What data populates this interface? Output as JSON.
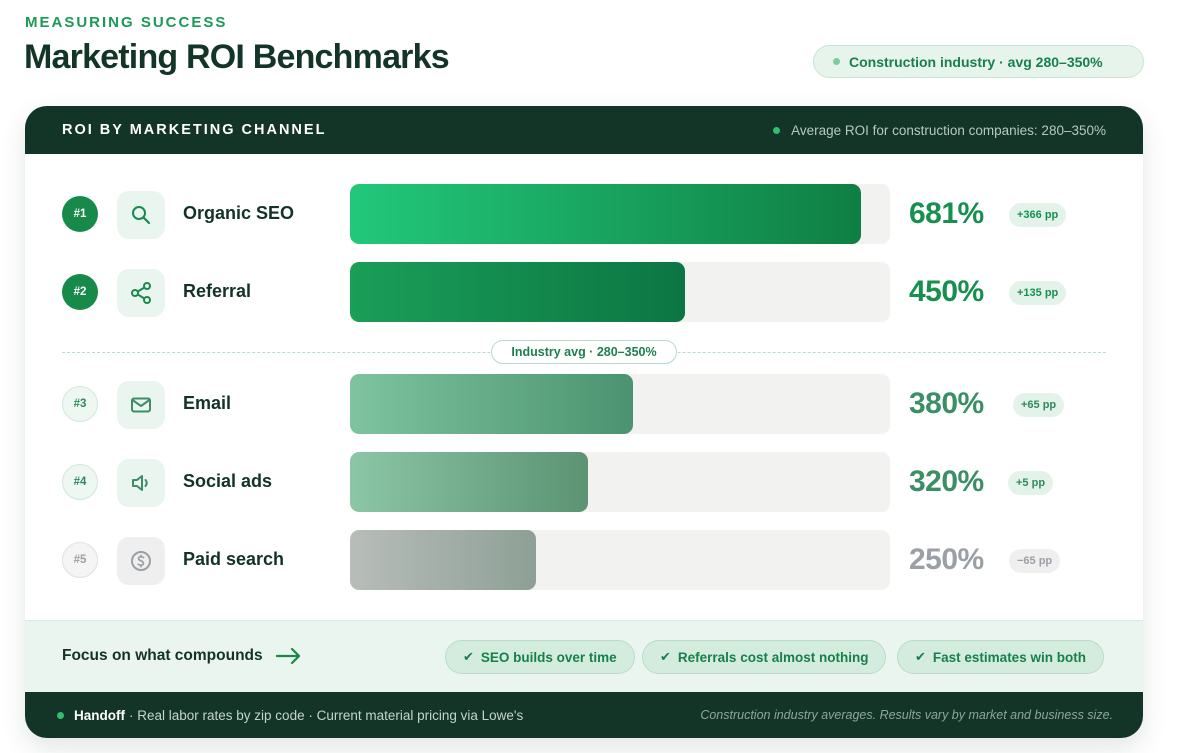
{
  "header": {
    "eyebrow": "MEASURING SUCCESS",
    "title": "Marketing ROI Benchmarks",
    "industry_pill": "Construction industry · avg 280–350%"
  },
  "card": {
    "title": "ROI BY MARKETING CHANNEL",
    "note": "Average ROI for construction companies: 280–350%",
    "divider_label": "Industry avg · 280–350%"
  },
  "colors": {
    "brand_dark": "#133528",
    "accent_green": "#1a9a57",
    "muted_gray": "#9aa0a6"
  },
  "chart_data": {
    "type": "bar",
    "orientation": "horizontal",
    "title": "ROI BY MARKETING CHANNEL",
    "categories": [
      "Organic SEO",
      "Referral",
      "Email",
      "Social ads",
      "Paid search"
    ],
    "values": [
      681,
      450,
      380,
      320,
      250
    ],
    "value_labels": [
      "681%",
      "450%",
      "380%",
      "320%",
      "250%"
    ],
    "ranks": [
      "#1",
      "#2",
      "#3",
      "#4",
      "#5"
    ],
    "deltas": [
      "+366 pp",
      "+135 pp",
      "+65 pp",
      "+5 pp",
      "−65 pp"
    ],
    "icons": [
      "search-icon",
      "share-icon",
      "mail-icon",
      "speaker-icon",
      "dollar-icon"
    ],
    "xlim": [
      0,
      700
    ],
    "reference_band": {
      "label": "Industry avg · 280–350%",
      "low": 280,
      "high": 350
    }
  },
  "focus": {
    "title": "Focus on what compounds",
    "chips": [
      "SEO builds over time",
      "Referrals cost almost nothing",
      "Fast estimates win both"
    ]
  },
  "footer": {
    "brand": "Handoff",
    "tagline": "· Real labor rates by zip code · Current material pricing via Lowe's",
    "disclaimer": "Construction industry averages. Results vary by market and business size."
  }
}
